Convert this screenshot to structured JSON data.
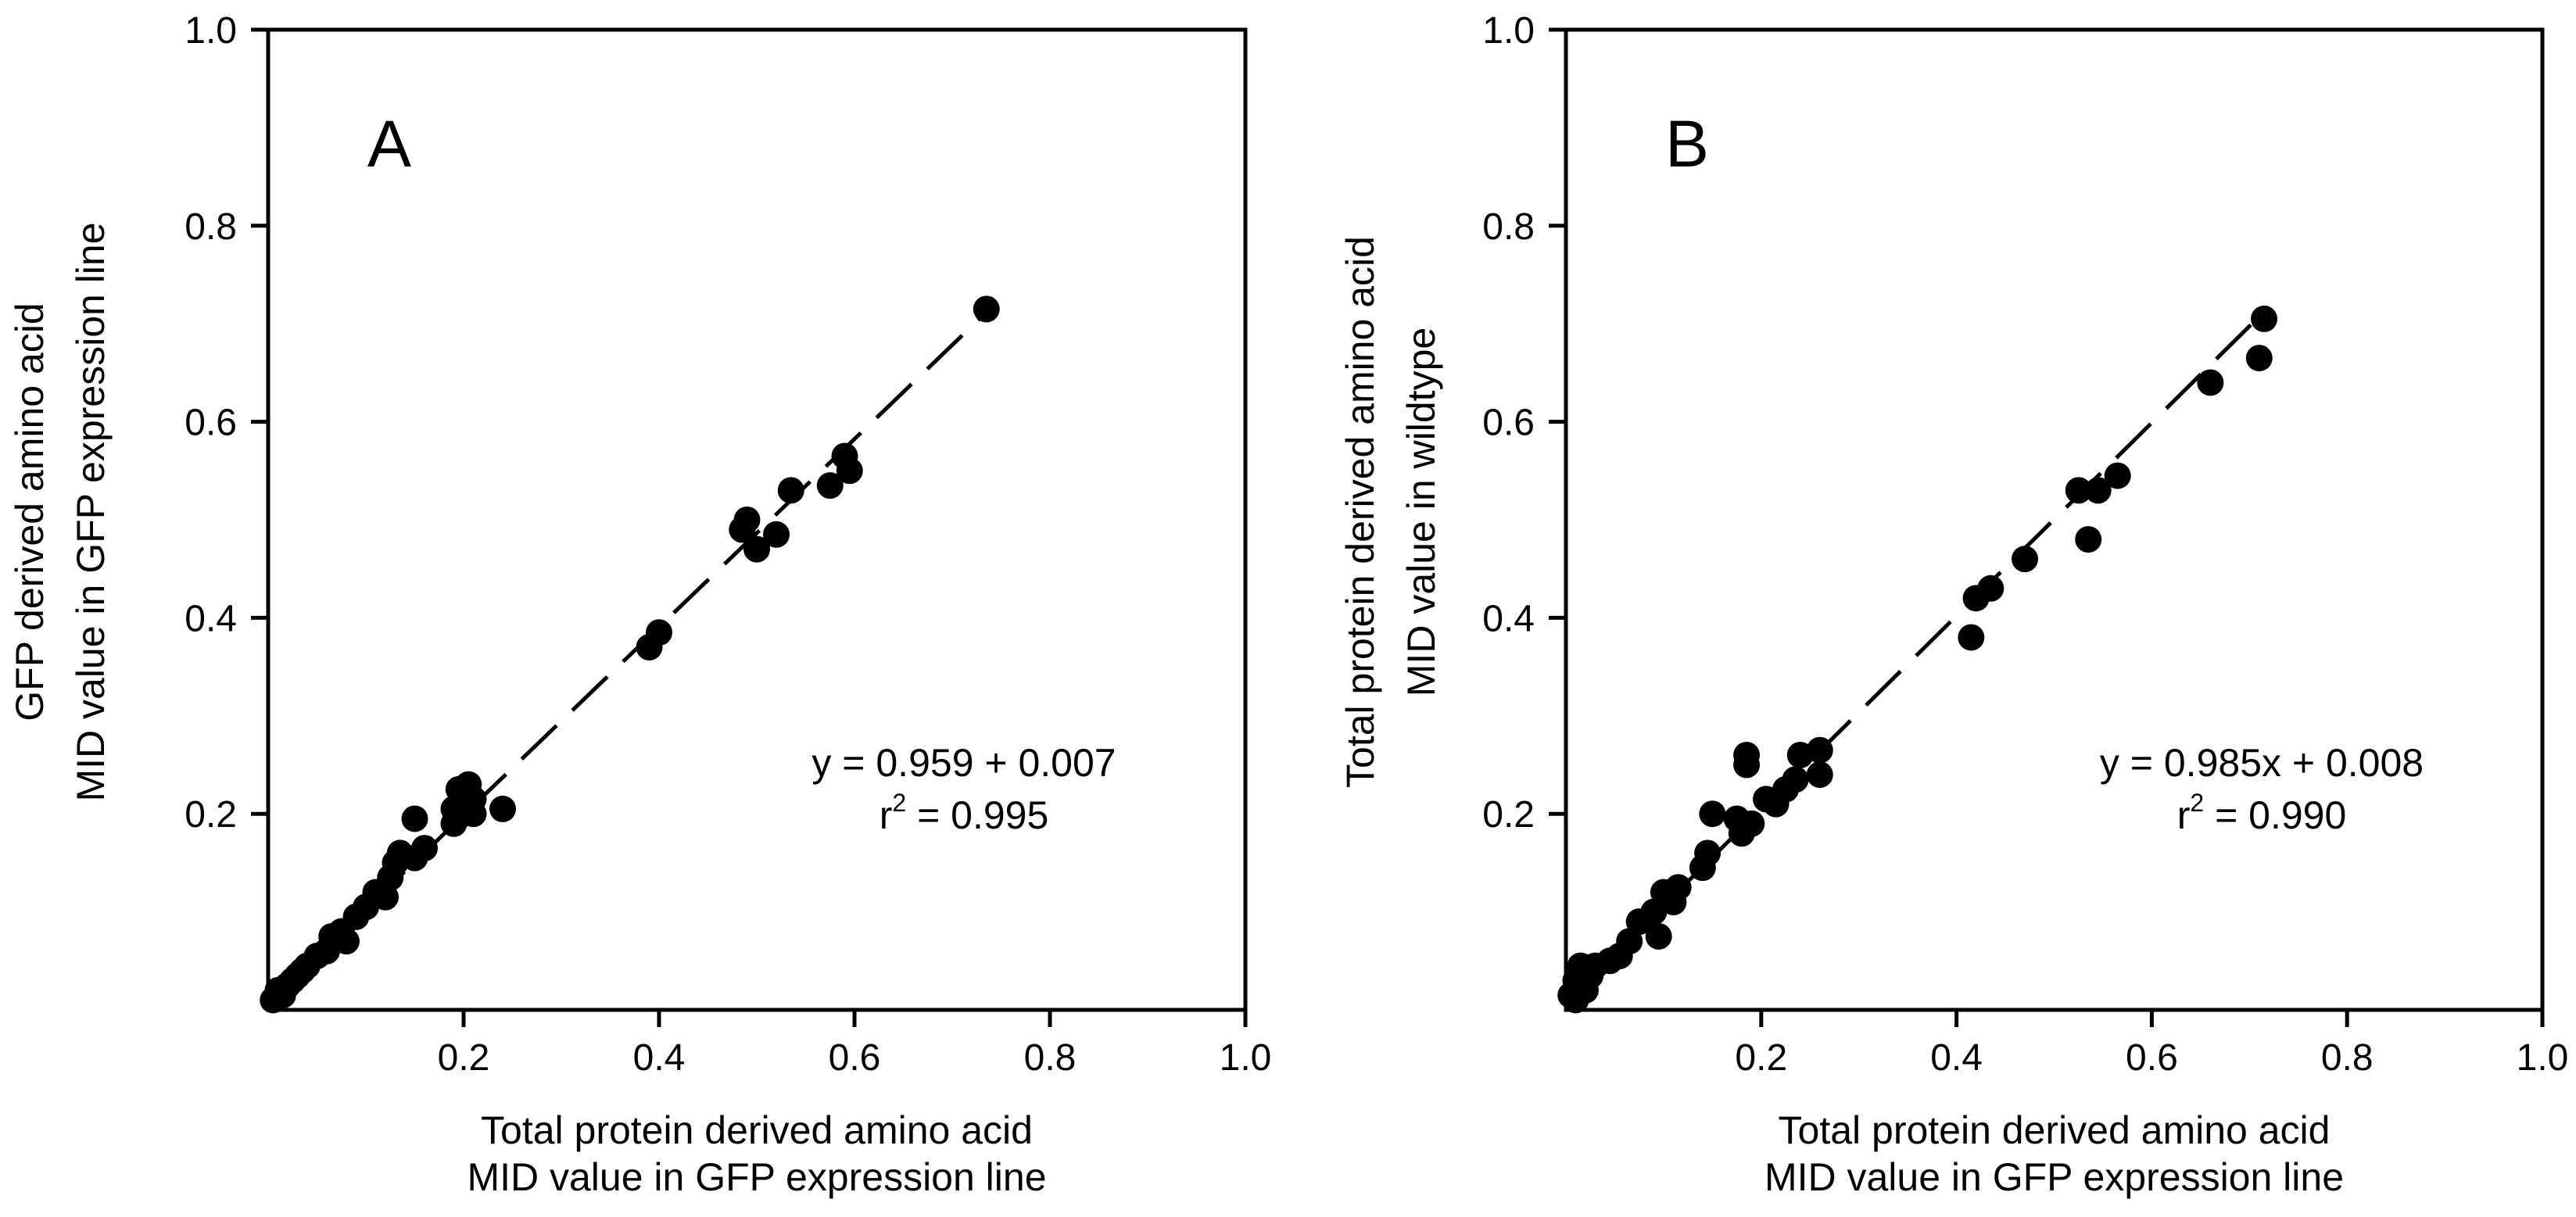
{
  "chart_data": [
    {
      "type": "scatter",
      "panel_label": "A",
      "xlabel": [
        "Total protein derived amino acid",
        "MID value in GFP expression line"
      ],
      "ylabel": [
        "GFP derived amino acid",
        "MID value in GFP expression line"
      ],
      "xlim": [
        0,
        1.0
      ],
      "ylim": [
        0,
        1.0
      ],
      "xticks": [
        "0.2",
        "0.4",
        "0.6",
        "0.8",
        "1.0"
      ],
      "yticks": [
        "0.2",
        "0.4",
        "0.6",
        "0.8",
        "1.0"
      ],
      "equation": "y = 0.959 + 0.007",
      "r2_prefix": "r",
      "r2_sup": "2",
      "r2_value": " = 0.995",
      "fit": {
        "slope": 0.959,
        "intercept": 0.007,
        "x_range": [
          0.0,
          0.73
        ],
        "style": "dashed"
      },
      "points": [
        {
          "x": 0.005,
          "y": 0.01
        },
        {
          "x": 0.01,
          "y": 0.02
        },
        {
          "x": 0.015,
          "y": 0.015
        },
        {
          "x": 0.02,
          "y": 0.025
        },
        {
          "x": 0.025,
          "y": 0.03
        },
        {
          "x": 0.03,
          "y": 0.035
        },
        {
          "x": 0.035,
          "y": 0.04
        },
        {
          "x": 0.04,
          "y": 0.045
        },
        {
          "x": 0.05,
          "y": 0.055
        },
        {
          "x": 0.06,
          "y": 0.06
        },
        {
          "x": 0.065,
          "y": 0.075
        },
        {
          "x": 0.075,
          "y": 0.08
        },
        {
          "x": 0.08,
          "y": 0.07
        },
        {
          "x": 0.09,
          "y": 0.095
        },
        {
          "x": 0.1,
          "y": 0.105
        },
        {
          "x": 0.11,
          "y": 0.12
        },
        {
          "x": 0.12,
          "y": 0.115
        },
        {
          "x": 0.125,
          "y": 0.135
        },
        {
          "x": 0.13,
          "y": 0.15
        },
        {
          "x": 0.135,
          "y": 0.16
        },
        {
          "x": 0.15,
          "y": 0.155
        },
        {
          "x": 0.15,
          "y": 0.195
        },
        {
          "x": 0.16,
          "y": 0.165
        },
        {
          "x": 0.19,
          "y": 0.19
        },
        {
          "x": 0.19,
          "y": 0.205
        },
        {
          "x": 0.195,
          "y": 0.225
        },
        {
          "x": 0.2,
          "y": 0.2
        },
        {
          "x": 0.205,
          "y": 0.23
        },
        {
          "x": 0.21,
          "y": 0.2
        },
        {
          "x": 0.21,
          "y": 0.215
        },
        {
          "x": 0.24,
          "y": 0.205
        },
        {
          "x": 0.39,
          "y": 0.37
        },
        {
          "x": 0.4,
          "y": 0.385
        },
        {
          "x": 0.485,
          "y": 0.49
        },
        {
          "x": 0.49,
          "y": 0.5
        },
        {
          "x": 0.5,
          "y": 0.47
        },
        {
          "x": 0.52,
          "y": 0.485
        },
        {
          "x": 0.535,
          "y": 0.53
        },
        {
          "x": 0.575,
          "y": 0.535
        },
        {
          "x": 0.59,
          "y": 0.565
        },
        {
          "x": 0.595,
          "y": 0.55
        },
        {
          "x": 0.735,
          "y": 0.715
        }
      ]
    },
    {
      "type": "scatter",
      "panel_label": "B",
      "xlabel": [
        "Total protein derived amino acid",
        "MID value in GFP expression line"
      ],
      "ylabel": [
        "Total protein derived amino acid",
        "MID value in wildtype"
      ],
      "xlim": [
        0,
        1.0
      ],
      "ylim": [
        0,
        1.0
      ],
      "xticks": [
        "0.2",
        "0.4",
        "0.6",
        "0.8",
        "1.0"
      ],
      "yticks": [
        "0.2",
        "0.4",
        "0.6",
        "0.8",
        "1.0"
      ],
      "equation": "y = 0.985x + 0.008",
      "r2_prefix": "r",
      "r2_sup": "2",
      "r2_value": " = 0.990",
      "fit": {
        "slope": 0.985,
        "intercept": 0.008,
        "x_range": [
          0.0,
          0.72
        ],
        "style": "dashed"
      },
      "points": [
        {
          "x": 0.005,
          "y": 0.015
        },
        {
          "x": 0.01,
          "y": 0.01
        },
        {
          "x": 0.01,
          "y": 0.03
        },
        {
          "x": 0.015,
          "y": 0.045
        },
        {
          "x": 0.02,
          "y": 0.02
        },
        {
          "x": 0.025,
          "y": 0.035
        },
        {
          "x": 0.03,
          "y": 0.045
        },
        {
          "x": 0.045,
          "y": 0.05
        },
        {
          "x": 0.055,
          "y": 0.055
        },
        {
          "x": 0.065,
          "y": 0.07
        },
        {
          "x": 0.075,
          "y": 0.09
        },
        {
          "x": 0.09,
          "y": 0.1
        },
        {
          "x": 0.095,
          "y": 0.075
        },
        {
          "x": 0.1,
          "y": 0.12
        },
        {
          "x": 0.11,
          "y": 0.11
        },
        {
          "x": 0.115,
          "y": 0.125
        },
        {
          "x": 0.14,
          "y": 0.145
        },
        {
          "x": 0.145,
          "y": 0.16
        },
        {
          "x": 0.15,
          "y": 0.2
        },
        {
          "x": 0.175,
          "y": 0.195
        },
        {
          "x": 0.18,
          "y": 0.18
        },
        {
          "x": 0.185,
          "y": 0.26
        },
        {
          "x": 0.185,
          "y": 0.25
        },
        {
          "x": 0.19,
          "y": 0.19
        },
        {
          "x": 0.205,
          "y": 0.215
        },
        {
          "x": 0.215,
          "y": 0.21
        },
        {
          "x": 0.225,
          "y": 0.225
        },
        {
          "x": 0.235,
          "y": 0.235
        },
        {
          "x": 0.24,
          "y": 0.26
        },
        {
          "x": 0.26,
          "y": 0.24
        },
        {
          "x": 0.26,
          "y": 0.265
        },
        {
          "x": 0.415,
          "y": 0.38
        },
        {
          "x": 0.42,
          "y": 0.42
        },
        {
          "x": 0.435,
          "y": 0.43
        },
        {
          "x": 0.47,
          "y": 0.46
        },
        {
          "x": 0.525,
          "y": 0.53
        },
        {
          "x": 0.535,
          "y": 0.48
        },
        {
          "x": 0.545,
          "y": 0.53
        },
        {
          "x": 0.565,
          "y": 0.545
        },
        {
          "x": 0.66,
          "y": 0.64
        },
        {
          "x": 0.71,
          "y": 0.665
        },
        {
          "x": 0.715,
          "y": 0.705
        }
      ]
    }
  ]
}
